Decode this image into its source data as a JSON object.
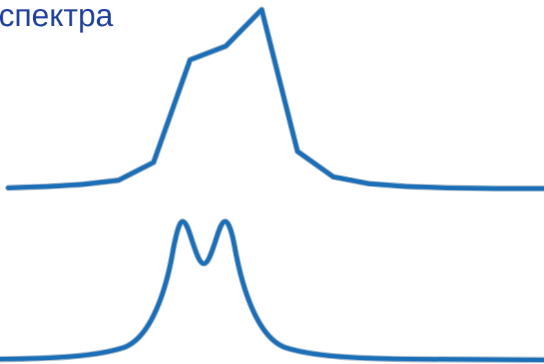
{
  "slide": {
    "title": "спектра",
    "title_color": "#1f3f9c"
  },
  "curves": {
    "stroke_color": "#1a6fb8",
    "edge_color": "#9fb7cc"
  }
}
